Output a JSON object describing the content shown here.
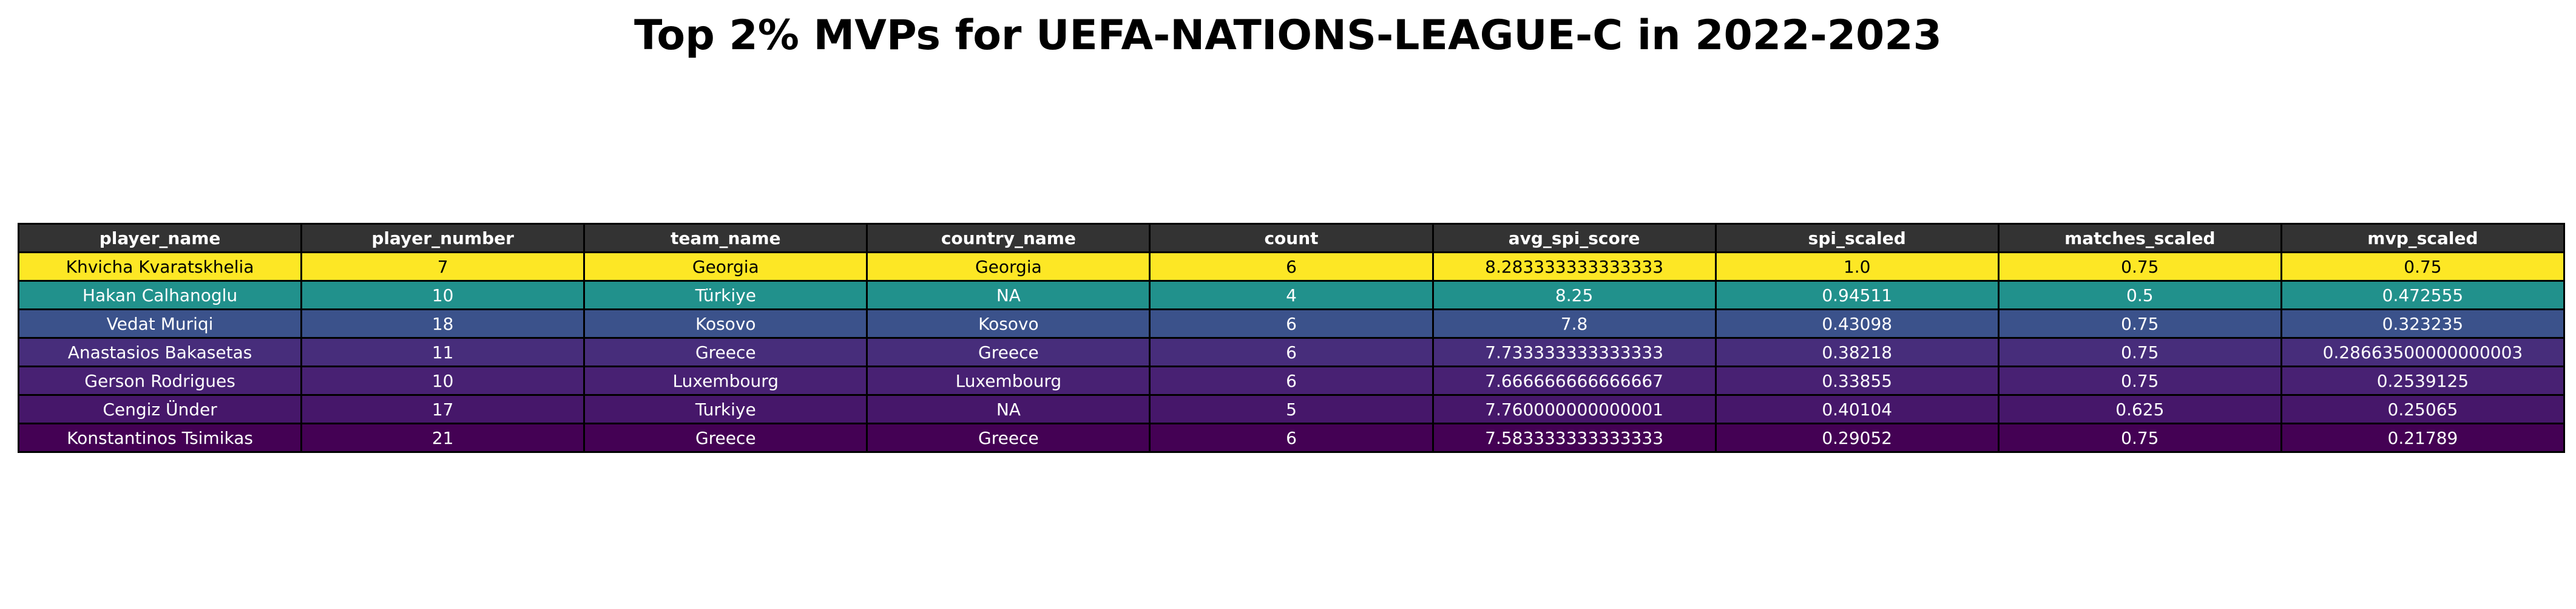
{
  "chart_data": {
    "type": "table",
    "title": "Top 2% MVPs for UEFA-NATIONS-LEAGUE-C in 2022-2023",
    "columns": [
      "player_name",
      "player_number",
      "team_name",
      "country_name",
      "count",
      "avg_spi_score",
      "spi_scaled",
      "matches_scaled",
      "mvp_scaled"
    ],
    "rows": [
      [
        "Khvicha Kvaratskhelia",
        "7",
        "Georgia",
        "Georgia",
        "6",
        "8.283333333333333",
        "1.0",
        "0.75",
        "0.75"
      ],
      [
        "Hakan Calhanoglu",
        "10",
        "Türkiye",
        "NA",
        "4",
        "8.25",
        "0.94511",
        "0.5",
        "0.472555"
      ],
      [
        "Vedat Muriqi",
        "18",
        "Kosovo",
        "Kosovo",
        "6",
        "7.8",
        "0.43098",
        "0.75",
        "0.323235"
      ],
      [
        "Anastasios Bakasetas",
        "11",
        "Greece",
        "Greece",
        "6",
        "7.733333333333333",
        "0.38218",
        "0.75",
        "0.28663500000000003"
      ],
      [
        "Gerson Rodrigues",
        "10",
        "Luxembourg",
        "Luxembourg",
        "6",
        "7.666666666666667",
        "0.33855",
        "0.75",
        "0.2539125"
      ],
      [
        "Cengiz Ünder",
        "17",
        "Turkiye",
        "NA",
        "5",
        "7.760000000000001",
        "0.40104",
        "0.625",
        "0.25065"
      ],
      [
        "Konstantinos Tsimikas",
        "21",
        "Greece",
        "Greece",
        "6",
        "7.583333333333333",
        "0.29052",
        "0.75",
        "0.21789"
      ]
    ],
    "row_colors": [
      "#fde725",
      "#21918c",
      "#3b528b",
      "#472d7b",
      "#482173",
      "#46176a",
      "#440154"
    ],
    "header_color": "#333333",
    "row_text_tone": [
      "light",
      "dark",
      "dark",
      "dark",
      "dark",
      "dark",
      "dark"
    ]
  }
}
